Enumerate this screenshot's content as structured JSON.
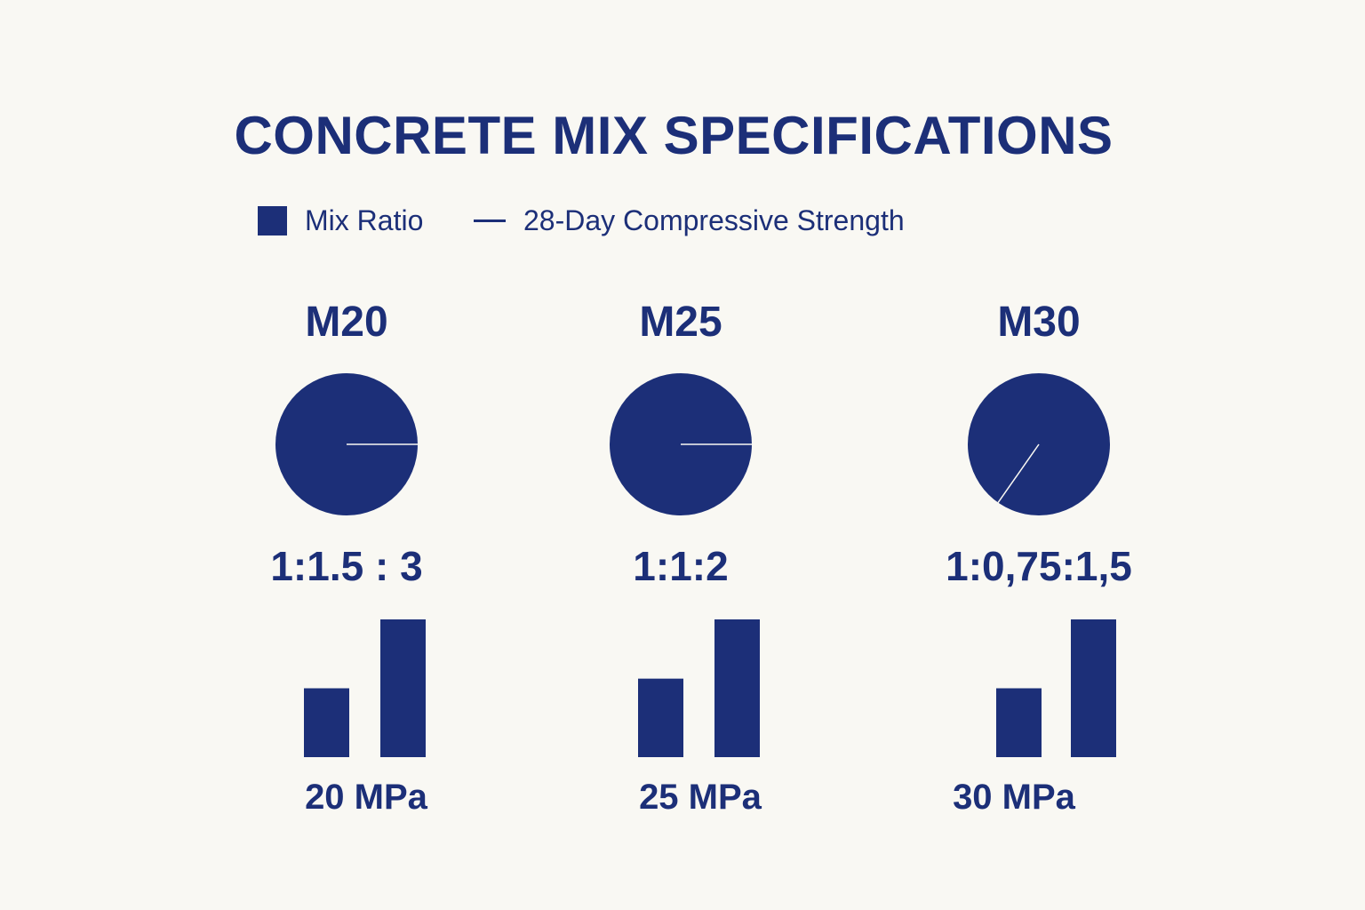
{
  "title": "CONCRETE MIX SPECIFICATIONS",
  "colors": {
    "primary": "#1c2f78",
    "background": "#f9f8f3"
  },
  "legend": [
    {
      "label": "Mix Ratio",
      "symbol": "square"
    },
    {
      "label": "28-Day Compressive Strength",
      "symbol": "line"
    }
  ],
  "chart_data": {
    "type": "bar",
    "categories": [
      "M20",
      "M25",
      "M30"
    ],
    "groups": [
      {
        "grade": "M20",
        "ratio": "1:1.5 : 3",
        "ratio_parts": [
          1,
          1.5,
          3
        ],
        "strength_label": "20 MPa",
        "strength_mpa": 20,
        "bars": [
          0.5,
          1.0
        ]
      },
      {
        "grade": "M25",
        "ratio": "1:1:2",
        "ratio_parts": [
          1,
          1,
          2
        ],
        "strength_label": "25 MPa",
        "strength_mpa": 25,
        "bars": [
          0.57,
          1.0
        ]
      },
      {
        "grade": "M30",
        "ratio": "1:0,75:1,5",
        "ratio_parts": [
          1,
          0.75,
          1.5
        ],
        "strength_label": "30 MPa",
        "strength_mpa": 30,
        "bars": [
          0.5,
          1.0
        ]
      }
    ],
    "pie_angles_deg": [
      0,
      0,
      125
    ],
    "grid": false,
    "legend_position": "top-left"
  }
}
